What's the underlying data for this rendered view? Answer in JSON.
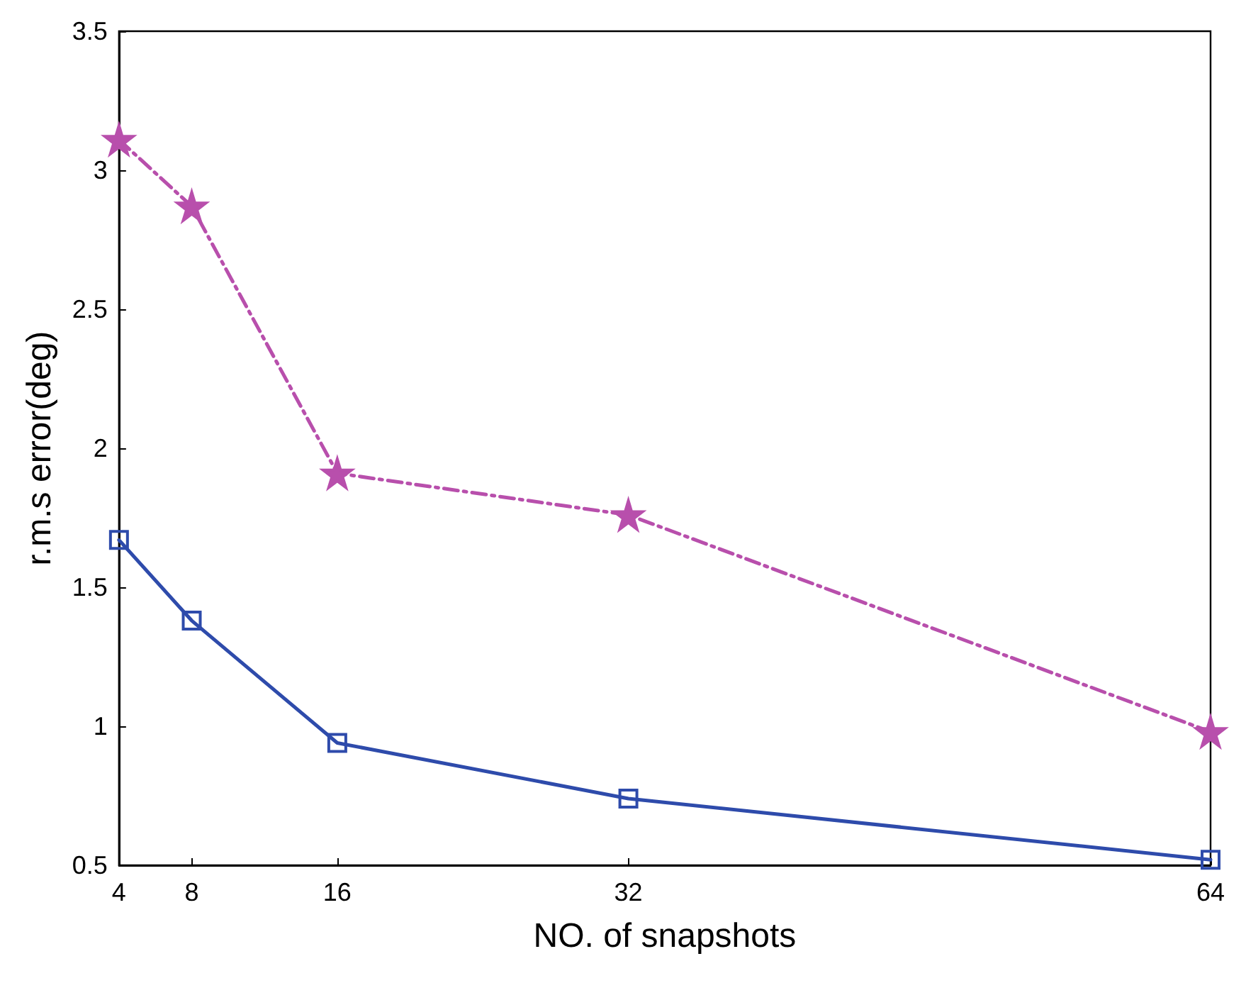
{
  "chart_data": {
    "type": "line",
    "xlabel": "NO. of snapshots",
    "ylabel": "r.m.s error(deg)",
    "x": [
      4,
      8,
      16,
      32,
      64
    ],
    "series": [
      {
        "color": "#2e4bab",
        "values": [
          1.67,
          1.38,
          0.94,
          0.74,
          0.52
        ],
        "marker": "square",
        "line_style": "solid"
      },
      {
        "color": "#b84fac",
        "values": [
          3.11,
          2.87,
          1.91,
          1.76,
          0.98
        ],
        "marker": "star",
        "line_style": "dashed"
      }
    ],
    "xlim": [
      4,
      64
    ],
    "xticks": [
      4,
      8,
      16,
      32,
      64
    ],
    "ylim": [
      0.5,
      3.5
    ],
    "yticks": [
      0.5,
      1,
      1.5,
      2,
      2.5,
      3,
      3.5
    ],
    "grid": false
  }
}
